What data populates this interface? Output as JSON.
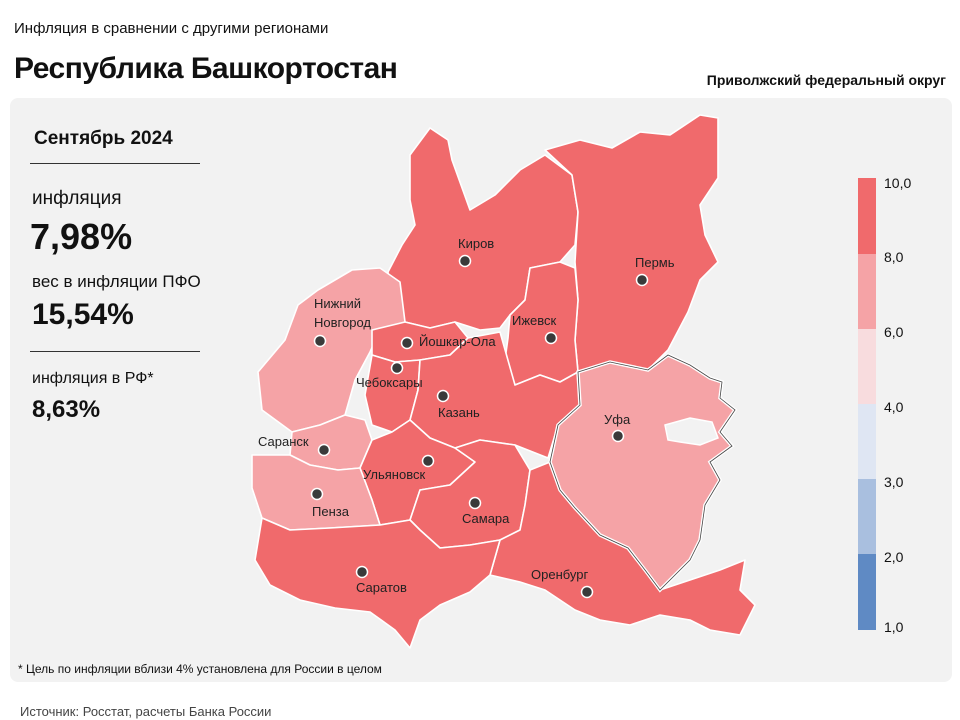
{
  "header": {
    "subtitle": "Инфляция в сравнении с другими регионами",
    "title": "Республика Башкортостан",
    "district": "Приволжский федеральный округ"
  },
  "stats": {
    "period": "Сентябрь 2024",
    "inflation_label": "инфляция",
    "inflation_value": "7,98%",
    "weight_label": "вес в инфляции ПФО",
    "weight_value": "15,54%",
    "rf_label": "инфляция в РФ*",
    "rf_value": "8,63%"
  },
  "footnote": "* Цель по инфляции вблизи 4% установлена для России в целом",
  "source": "Источник: Росстат, расчеты Банка России",
  "colors": {
    "bin_8_10": "#f06a6c",
    "bin_6_8": "#f5a3a6",
    "bin_4_6": "#f8dcde",
    "bin_3_4": "#dfe6f3",
    "bin_2_3": "#a9bfdf",
    "bin_1_2": "#5f8ac4"
  },
  "legend": {
    "ticks": [
      "10,0",
      "8,0",
      "6,0",
      "4,0",
      "3,0",
      "2,0",
      "1,0"
    ]
  },
  "cities": [
    {
      "name": "Киров",
      "bin": "8-10"
    },
    {
      "name": "Пермь",
      "bin": "8-10"
    },
    {
      "name": "Нижний Новгород",
      "line1": "Нижний",
      "line2": "Новгород",
      "bin": "6-8"
    },
    {
      "name": "Ижевск",
      "bin": "8-10"
    },
    {
      "name": "Йошкар-Ола",
      "bin": "8-10"
    },
    {
      "name": "Чебоксары",
      "bin": "8-10"
    },
    {
      "name": "Казань",
      "bin": "8-10"
    },
    {
      "name": "Уфа",
      "bin": "6-8",
      "highlighted": true
    },
    {
      "name": "Саранск",
      "bin": "6-8"
    },
    {
      "name": "Ульяновск",
      "bin": "8-10"
    },
    {
      "name": "Пенза",
      "bin": "6-8"
    },
    {
      "name": "Самара",
      "bin": "8-10"
    },
    {
      "name": "Оренбург",
      "bin": "8-10"
    },
    {
      "name": "Саратов",
      "bin": "8-10"
    }
  ]
}
